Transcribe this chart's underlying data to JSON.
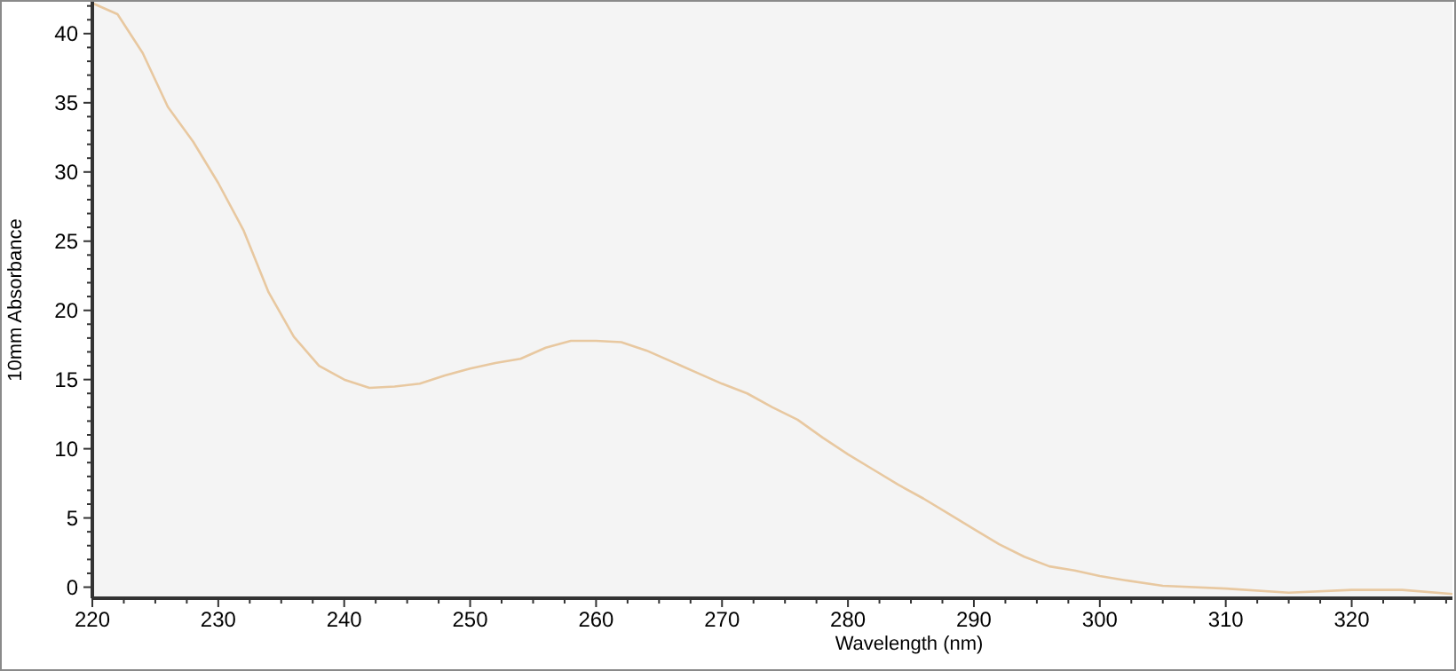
{
  "chart_data": {
    "type": "line",
    "xlabel": "Wavelength (nm)",
    "ylabel": "10mm Absorbance",
    "x": [
      220,
      222,
      224,
      226,
      228,
      230,
      232,
      234,
      236,
      238,
      240,
      242,
      244,
      246,
      248,
      250,
      252,
      254,
      256,
      258,
      260,
      262,
      264,
      266,
      268,
      270,
      272,
      274,
      276,
      278,
      280,
      282,
      284,
      286,
      288,
      290,
      292,
      294,
      296,
      298,
      300,
      302,
      305,
      310,
      315,
      320,
      324,
      328
    ],
    "series": [
      {
        "color": "#e8c8a0",
        "values": [
          42.2,
          41.4,
          38.6,
          34.7,
          32.2,
          29.2,
          25.8,
          21.3,
          18.1,
          16.0,
          15.0,
          14.4,
          14.5,
          14.7,
          15.3,
          15.8,
          16.2,
          16.5,
          17.3,
          17.8,
          17.8,
          17.7,
          17.1,
          16.3,
          15.5,
          14.7,
          14.0,
          13.0,
          12.1,
          10.8,
          9.6,
          8.5,
          7.4,
          6.4,
          5.3,
          4.2,
          3.1,
          2.2,
          1.5,
          1.2,
          0.8,
          0.5,
          0.1,
          -0.1,
          -0.4,
          -0.2,
          -0.2,
          -0.5
        ]
      }
    ],
    "xlim": [
      220,
      328
    ],
    "ylim": [
      -0.8,
      42.3
    ],
    "xticks": [
      220,
      {
        "value": 222.5,
        "label": null
      },
      {
        "value": 225,
        "label": null
      },
      {
        "value": 227.5,
        "label": null
      },
      230,
      {
        "value": 232.5,
        "label": null
      },
      {
        "value": 235,
        "label": null
      },
      {
        "value": 237.5,
        "label": null
      },
      240,
      {
        "value": 242.5,
        "label": null
      },
      {
        "value": 245,
        "label": null
      },
      {
        "value": 247.5,
        "label": null
      },
      250,
      {
        "value": 252.5,
        "label": null
      },
      {
        "value": 255,
        "label": null
      },
      {
        "value": 257.5,
        "label": null
      },
      260,
      {
        "value": 262.5,
        "label": null
      },
      {
        "value": 265,
        "label": null
      },
      {
        "value": 267.5,
        "label": null
      },
      270,
      {
        "value": 272.5,
        "label": null
      },
      {
        "value": 275,
        "label": null
      },
      {
        "value": 277.5,
        "label": null
      },
      280,
      {
        "value": 282.5,
        "label": null
      },
      {
        "value": 285,
        "label": null
      },
      {
        "value": 287.5,
        "label": null
      },
      290,
      {
        "value": 292.5,
        "label": null
      },
      {
        "value": 295,
        "label": null
      },
      {
        "value": 297.5,
        "label": null
      },
      300,
      {
        "value": 302.5,
        "label": null
      },
      {
        "value": 305,
        "label": null
      },
      {
        "value": 307.5,
        "label": null
      },
      310,
      {
        "value": 312.5,
        "label": null
      },
      {
        "value": 315,
        "label": null
      },
      {
        "value": 317.5,
        "label": null
      },
      320,
      {
        "value": 322.5,
        "label": null
      },
      {
        "value": 325,
        "label": null
      },
      {
        "value": 327.5,
        "label": null
      }
    ],
    "yticks": [
      0,
      {
        "value": 1,
        "label": null
      },
      {
        "value": 2,
        "label": null
      },
      {
        "value": 3,
        "label": null
      },
      {
        "value": 4,
        "label": null
      },
      5,
      {
        "value": 6,
        "label": null
      },
      {
        "value": 7,
        "label": null
      },
      {
        "value": 8,
        "label": null
      },
      {
        "value": 9,
        "label": null
      },
      10,
      {
        "value": 11,
        "label": null
      },
      {
        "value": 12,
        "label": null
      },
      {
        "value": 13,
        "label": null
      },
      {
        "value": 14,
        "label": null
      },
      15,
      {
        "value": 16,
        "label": null
      },
      {
        "value": 17,
        "label": null
      },
      {
        "value": 18,
        "label": null
      },
      {
        "value": 19,
        "label": null
      },
      20,
      {
        "value": 21,
        "label": null
      },
      {
        "value": 22,
        "label": null
      },
      {
        "value": 23,
        "label": null
      },
      {
        "value": 24,
        "label": null
      },
      25,
      {
        "value": 26,
        "label": null
      },
      {
        "value": 27,
        "label": null
      },
      {
        "value": 28,
        "label": null
      },
      {
        "value": 29,
        "label": null
      },
      30,
      {
        "value": 31,
        "label": null
      },
      {
        "value": 32,
        "label": null
      },
      {
        "value": 33,
        "label": null
      },
      {
        "value": 34,
        "label": null
      },
      35,
      {
        "value": 36,
        "label": null
      },
      {
        "value": 37,
        "label": null
      },
      {
        "value": 38,
        "label": null
      },
      {
        "value": 39,
        "label": null
      },
      40,
      {
        "value": 41,
        "label": null
      },
      {
        "value": 42,
        "label": null
      }
    ],
    "grid": false,
    "marker": "none",
    "line_style": "solid"
  }
}
